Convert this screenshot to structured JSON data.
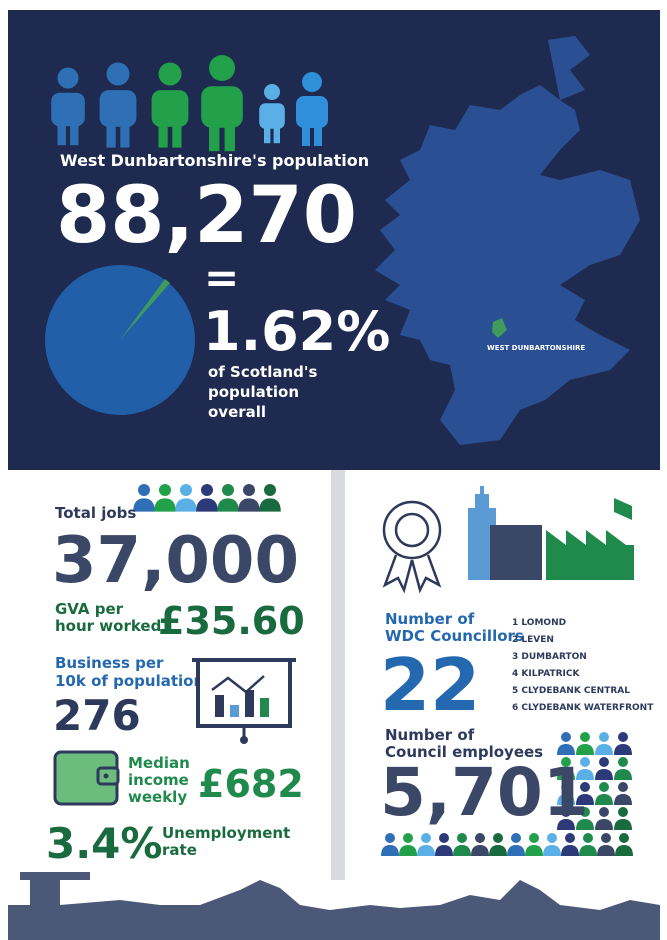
{
  "population": {
    "label": "West Dunbartonshire's population",
    "value": "88,270",
    "equals": "=",
    "share": "1.62%",
    "share_text": [
      "of Scotland's",
      "population",
      "overall"
    ],
    "map_label": "WEST DUNBARTONSHIRE"
  },
  "jobs": {
    "label": "Total jobs",
    "value": "37,000"
  },
  "gva": {
    "label": [
      "GVA per",
      "hour worked"
    ],
    "value": "£35.60"
  },
  "business": {
    "label": [
      "Business per",
      "10k of population"
    ],
    "value": "276"
  },
  "income": {
    "label": [
      "Median",
      "income",
      "weekly"
    ],
    "value": "£682"
  },
  "unemployment": {
    "value": "3.4%",
    "label": [
      "Unemployment",
      "rate"
    ]
  },
  "councillors": {
    "label": [
      "Number of",
      "WDC Councillors"
    ],
    "value": "22",
    "wards": [
      "1 LOMOND",
      "2 LEVEN",
      "3 DUMBARTON",
      "4 KILPATRICK",
      "5 CLYDEBANK CENTRAL",
      "6 CLYDEBANK WATERFRONT"
    ]
  },
  "employees": {
    "label": [
      "Number of",
      "Council employees"
    ],
    "value": "5,701"
  }
}
